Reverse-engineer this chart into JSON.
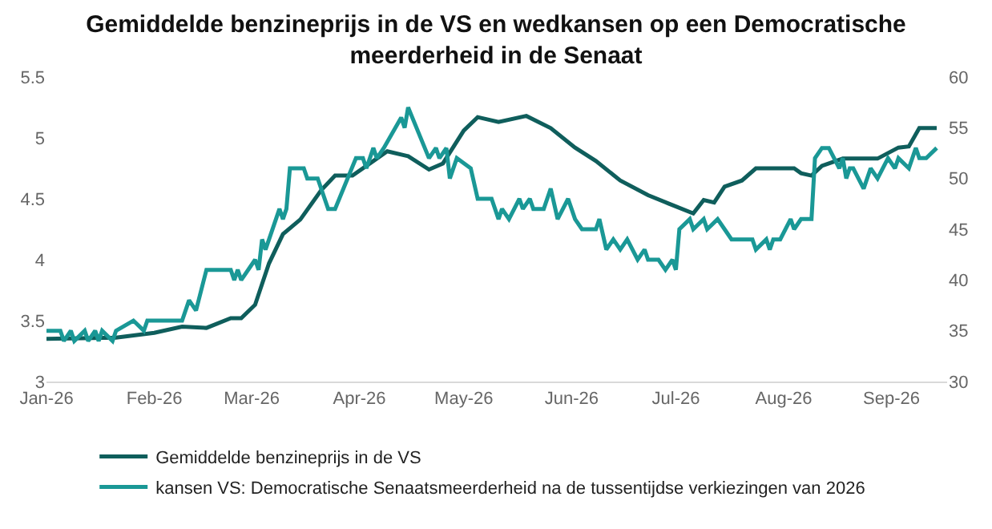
{
  "chart_data": {
    "type": "line",
    "title": "Gemiddelde benzineprijs in de VS en wedkansen op een Democratische meerderheid in de Senaat",
    "xlim": [
      "2026-01-01",
      "2026-09-17"
    ],
    "xticks": [
      {
        "value": "2026-01-01",
        "label": "Jan-26"
      },
      {
        "value": "2026-02-01",
        "label": "Feb-26"
      },
      {
        "value": "2026-03-01",
        "label": "Mar-26"
      },
      {
        "value": "2026-04-01",
        "label": "Apr-26"
      },
      {
        "value": "2026-05-01",
        "label": "May-26"
      },
      {
        "value": "2026-06-01",
        "label": "Jun-26"
      },
      {
        "value": "2026-07-01",
        "label": "Jul-26"
      },
      {
        "value": "2026-08-01",
        "label": "Aug-26"
      },
      {
        "value": "2026-09-01",
        "label": "Sep-26"
      }
    ],
    "ylim": [
      3,
      5.5
    ],
    "yticks": [
      3,
      3.5,
      4,
      4.5,
      5,
      5.5
    ],
    "y2lim": [
      30,
      60
    ],
    "y2ticks": [
      30,
      35,
      40,
      45,
      50,
      55,
      60
    ],
    "legend": "bottom",
    "marker": "none",
    "line_style": "solid",
    "series": [
      {
        "name": "Gemiddelde benzineprijs in de VS",
        "color": "#0f5e5c",
        "x": [
          "2026-01-01",
          "2026-01-21",
          "2026-02-01",
          "2026-02-09",
          "2026-02-16",
          "2026-02-23",
          "2026-02-26",
          "2026-03-02",
          "2026-03-06",
          "2026-03-10",
          "2026-03-15",
          "2026-03-21",
          "2026-03-25",
          "2026-03-30",
          "2026-04-05",
          "2026-04-09",
          "2026-04-15",
          "2026-04-21",
          "2026-04-25",
          "2026-05-01",
          "2026-05-05",
          "2026-05-11",
          "2026-05-19",
          "2026-05-26",
          "2026-06-02",
          "2026-06-08",
          "2026-06-15",
          "2026-06-23",
          "2026-06-29",
          "2026-07-06",
          "2026-07-09",
          "2026-07-12",
          "2026-07-15",
          "2026-07-20",
          "2026-07-24",
          "2026-07-30",
          "2026-08-04",
          "2026-08-06",
          "2026-08-09",
          "2026-08-12",
          "2026-08-18",
          "2026-08-28",
          "2026-09-03",
          "2026-09-06",
          "2026-09-09",
          "2026-09-14"
        ],
        "values": [
          3.35,
          3.36,
          3.4,
          3.45,
          3.44,
          3.52,
          3.52,
          3.63,
          3.97,
          4.21,
          4.33,
          4.57,
          4.69,
          4.69,
          4.81,
          4.89,
          4.85,
          4.74,
          4.79,
          5.06,
          5.17,
          5.13,
          5.18,
          5.08,
          4.92,
          4.81,
          4.65,
          4.53,
          4.46,
          4.38,
          4.49,
          4.47,
          4.6,
          4.65,
          4.75,
          4.75,
          4.75,
          4.71,
          4.69,
          4.77,
          4.83,
          4.83,
          4.92,
          4.93,
          5.08,
          5.08
        ]
      },
      {
        "name": "kansen VS: Democratische Senaatsmeerderheid na de tussentijdse verkiezingen van 2026",
        "color": "#1a9896",
        "axis": "y2",
        "x": [
          "2026-01-01",
          "2026-01-05",
          "2026-01-06",
          "2026-01-08",
          "2026-01-09",
          "2026-01-12",
          "2026-01-13",
          "2026-01-15",
          "2026-01-16",
          "2026-01-17",
          "2026-01-20",
          "2026-01-21",
          "2026-01-26",
          "2026-01-29",
          "2026-01-30",
          "2026-02-09",
          "2026-02-11",
          "2026-02-13",
          "2026-02-16",
          "2026-02-23",
          "2026-02-24",
          "2026-02-25",
          "2026-02-26",
          "2026-03-02",
          "2026-03-03",
          "2026-03-04",
          "2026-03-05",
          "2026-03-09",
          "2026-03-10",
          "2026-03-11",
          "2026-03-12",
          "2026-03-16",
          "2026-03-17",
          "2026-03-20",
          "2026-03-23",
          "2026-03-25",
          "2026-03-31",
          "2026-04-02",
          "2026-04-03",
          "2026-04-05",
          "2026-04-06",
          "2026-04-08",
          "2026-04-13",
          "2026-04-14",
          "2026-04-15",
          "2026-04-21",
          "2026-04-23",
          "2026-04-24",
          "2026-04-26",
          "2026-04-27",
          "2026-04-29",
          "2026-05-03",
          "2026-05-05",
          "2026-05-09",
          "2026-05-11",
          "2026-05-12",
          "2026-05-14",
          "2026-05-17",
          "2026-05-18",
          "2026-05-20",
          "2026-05-21",
          "2026-05-24",
          "2026-05-26",
          "2026-05-28",
          "2026-05-31",
          "2026-06-02",
          "2026-06-04",
          "2026-06-08",
          "2026-06-09",
          "2026-06-11",
          "2026-06-13",
          "2026-06-15",
          "2026-06-17",
          "2026-06-20",
          "2026-06-22",
          "2026-06-23",
          "2026-06-26",
          "2026-06-28",
          "2026-06-30",
          "2026-07-01",
          "2026-07-02",
          "2026-07-05",
          "2026-07-06",
          "2026-07-09",
          "2026-07-10",
          "2026-07-13",
          "2026-07-15",
          "2026-07-17",
          "2026-07-23",
          "2026-07-24",
          "2026-07-27",
          "2026-07-28",
          "2026-07-29",
          "2026-07-31",
          "2026-08-03",
          "2026-08-04",
          "2026-08-06",
          "2026-08-09",
          "2026-08-10",
          "2026-08-12",
          "2026-08-14",
          "2026-08-17",
          "2026-08-18",
          "2026-08-19",
          "2026-08-20",
          "2026-08-21",
          "2026-08-24",
          "2026-08-26",
          "2026-08-28",
          "2026-08-31",
          "2026-09-02",
          "2026-09-03",
          "2026-09-06",
          "2026-09-08",
          "2026-09-09",
          "2026-09-11",
          "2026-09-14"
        ],
        "values": [
          35,
          35,
          34,
          35,
          34,
          35,
          34,
          35,
          34,
          35,
          34,
          35,
          36,
          35,
          36,
          36,
          38,
          37,
          41,
          41,
          40,
          41,
          40,
          42,
          41,
          44,
          43,
          47,
          46,
          47,
          51,
          51,
          50,
          50,
          47,
          47,
          52,
          52,
          51,
          53,
          52,
          53,
          56,
          55,
          57,
          52,
          53,
          52,
          53,
          50,
          52,
          51,
          48,
          48,
          46,
          47,
          46,
          48,
          47,
          48,
          47,
          47,
          49,
          46,
          48,
          46,
          45,
          45,
          46,
          43,
          44,
          43,
          44,
          42,
          43,
          42,
          42,
          41,
          42,
          41,
          45,
          46,
          45,
          46,
          45,
          46,
          45,
          44,
          44,
          43,
          44,
          43,
          44,
          44,
          46,
          45,
          46,
          46,
          52,
          53,
          53,
          51,
          52,
          50,
          51,
          51,
          49,
          51,
          50,
          52,
          51,
          52,
          51,
          53,
          52,
          52,
          53
        ]
      }
    ]
  }
}
